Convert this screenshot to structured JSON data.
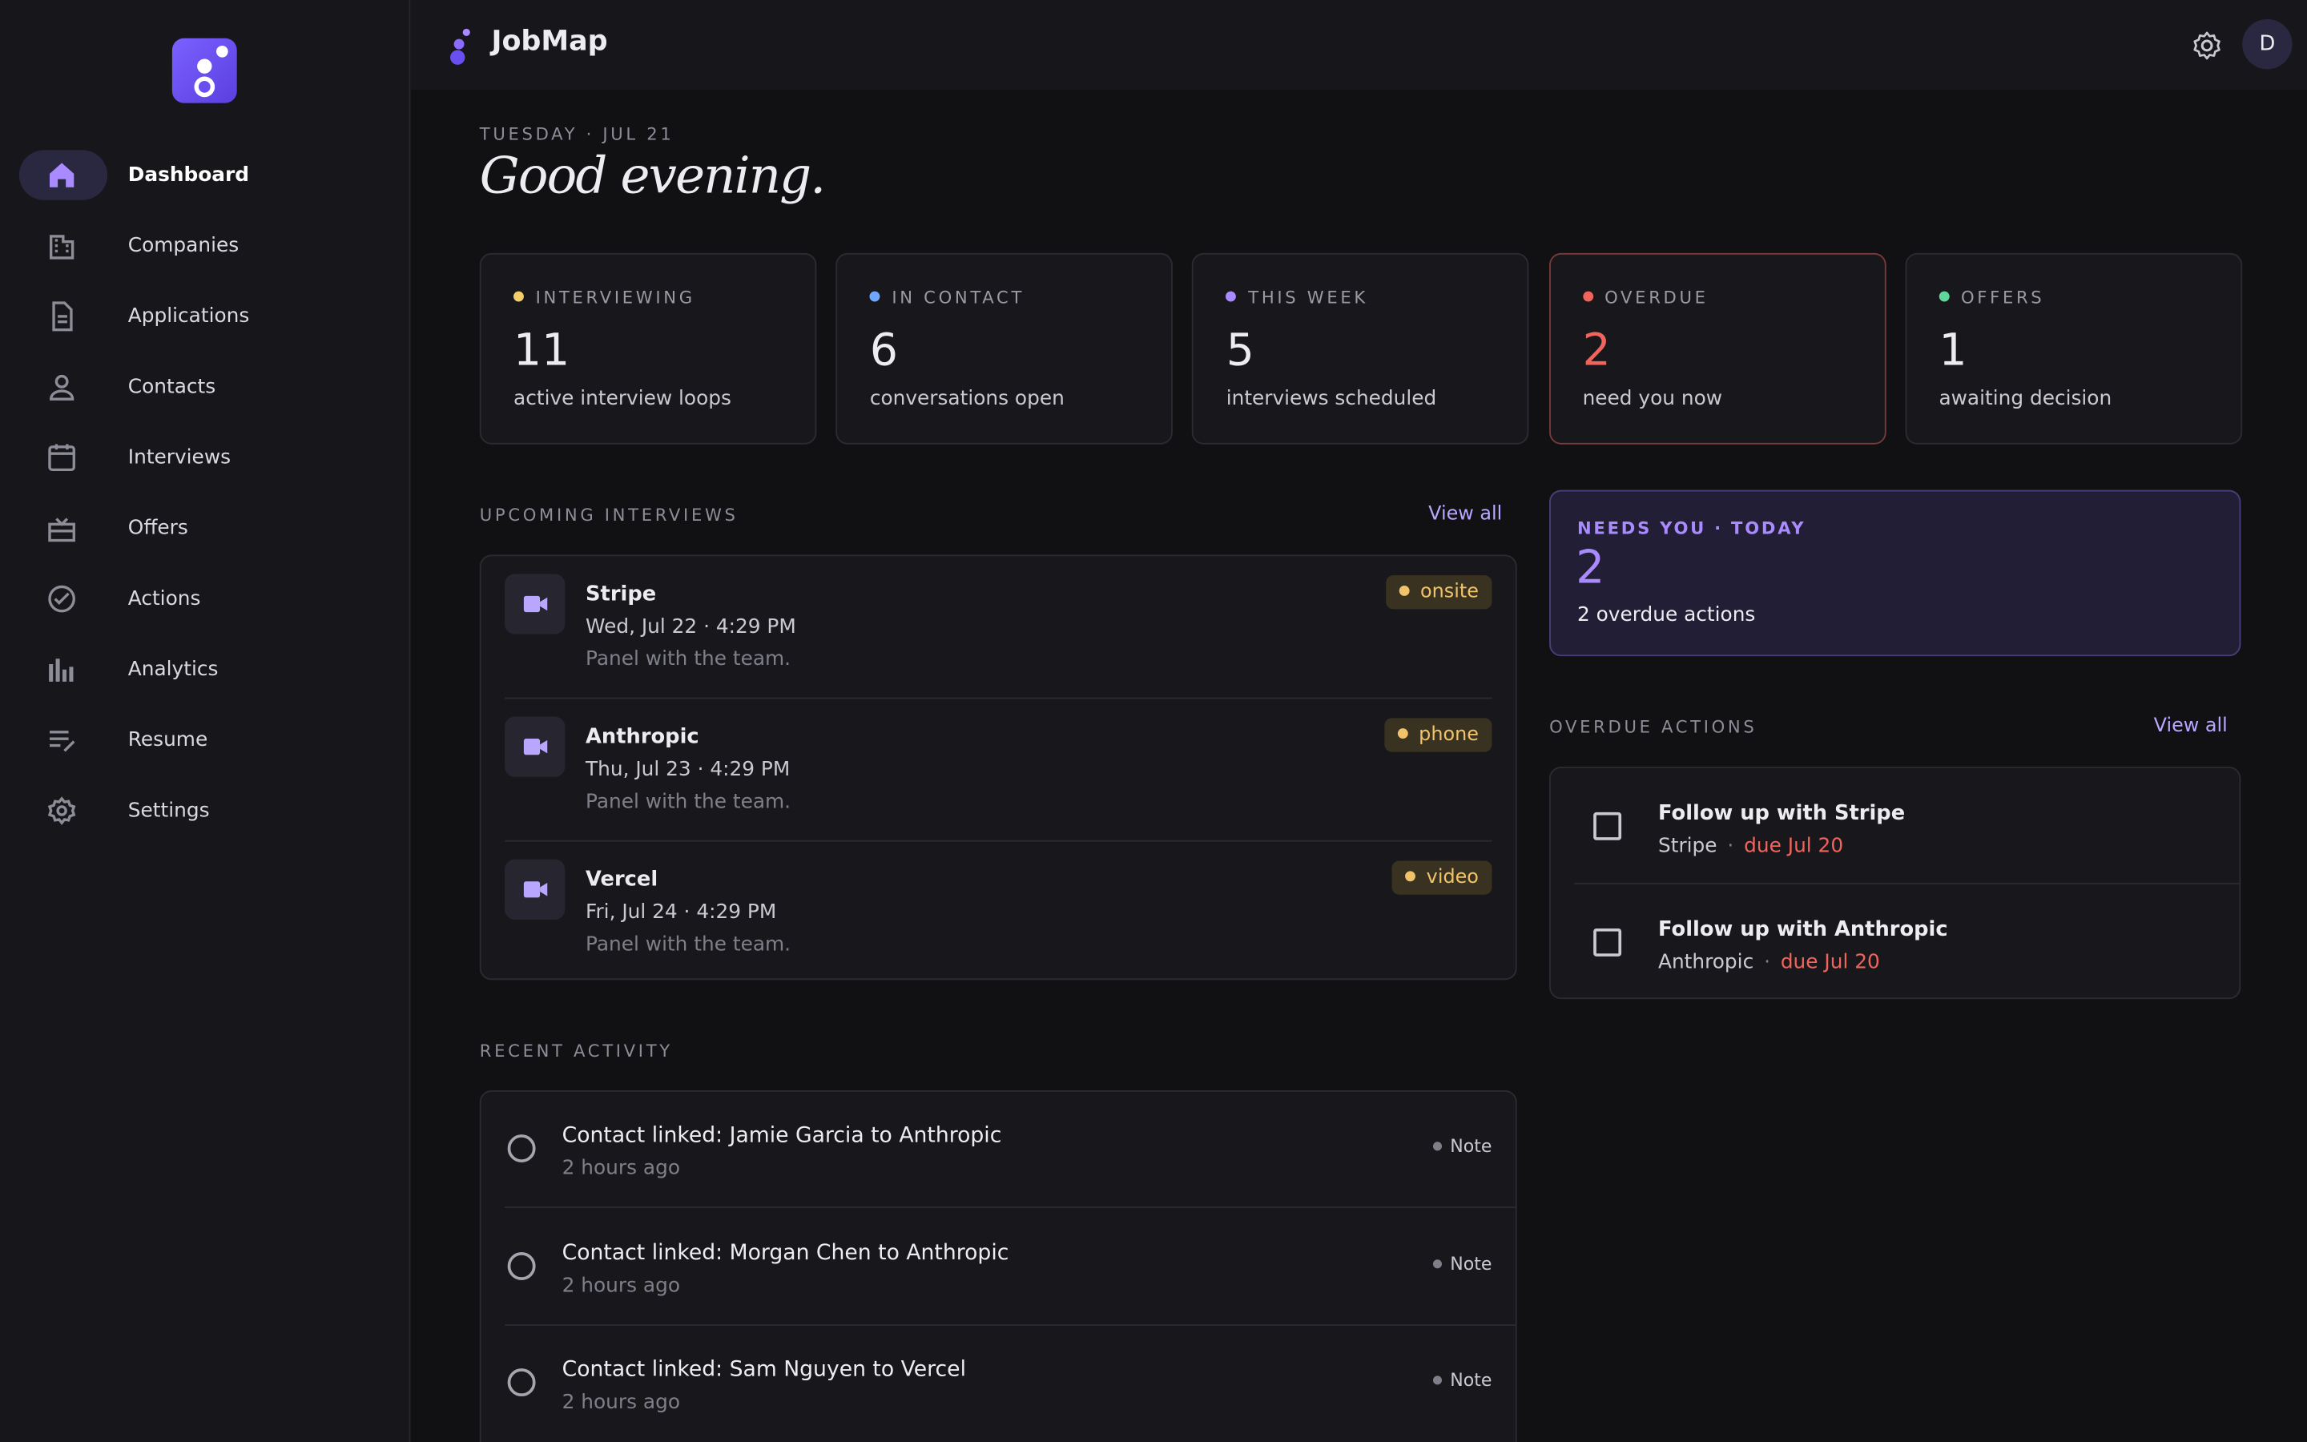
{
  "app": {
    "name": "JobMap",
    "avatar": "D"
  },
  "nav": [
    "Dashboard",
    "Companies",
    "Applications",
    "Contacts",
    "Interviews",
    "Offers",
    "Actions",
    "Analytics",
    "Resume",
    "Settings"
  ],
  "header": {
    "date": "TUESDAY · JUL 21",
    "greeting": "Good evening."
  },
  "stats": [
    {
      "label": "INTERVIEWING",
      "value": "11",
      "caption": "active interview loops",
      "color": "#f2cf6b"
    },
    {
      "label": "IN CONTACT",
      "value": "6",
      "caption": "conversations open",
      "color": "#6ea8fe"
    },
    {
      "label": "THIS WEEK",
      "value": "5",
      "caption": "interviews scheduled",
      "color": "#a98bff"
    },
    {
      "label": "OVERDUE",
      "value": "2",
      "caption": "need you now",
      "color": "#f0645c"
    },
    {
      "label": "OFFERS",
      "value": "1",
      "caption": "awaiting decision",
      "color": "#5fd69a"
    }
  ],
  "upcoming": {
    "heading": "UPCOMING INTERVIEWS",
    "link": "View all",
    "items": [
      {
        "company": "Stripe",
        "time": "Wed, Jul 22 · 4:29 PM",
        "note": "Panel with the team.",
        "kind": "onsite"
      },
      {
        "company": "Anthropic",
        "time": "Thu, Jul 23 · 4:29 PM",
        "note": "Panel with the team.",
        "kind": "phone"
      },
      {
        "company": "Vercel",
        "time": "Fri, Jul 24 · 4:29 PM",
        "note": "Panel with the team.",
        "kind": "video"
      }
    ]
  },
  "needs_you": {
    "label": "NEEDS YOU · TODAY",
    "count": "2",
    "text": "2 overdue actions"
  },
  "overdue": {
    "heading": "OVERDUE ACTIONS",
    "link": "View all",
    "separator": "·",
    "items": [
      {
        "title": "Follow up with Stripe",
        "company": "Stripe",
        "due": "due Jul 20"
      },
      {
        "title": "Follow up with Anthropic",
        "company": "Anthropic",
        "due": "due Jul 20"
      }
    ]
  },
  "activity": {
    "heading": "RECENT ACTIVITY",
    "items": [
      {
        "text": "Contact linked: Jamie Garcia to Anthropic",
        "time": "2 hours ago",
        "tag": "Note"
      },
      {
        "text": "Contact linked: Morgan Chen to Anthropic",
        "time": "2 hours ago",
        "tag": "Note"
      },
      {
        "text": "Contact linked: Sam Nguyen to Vercel",
        "time": "2 hours ago",
        "tag": "Note"
      }
    ]
  }
}
